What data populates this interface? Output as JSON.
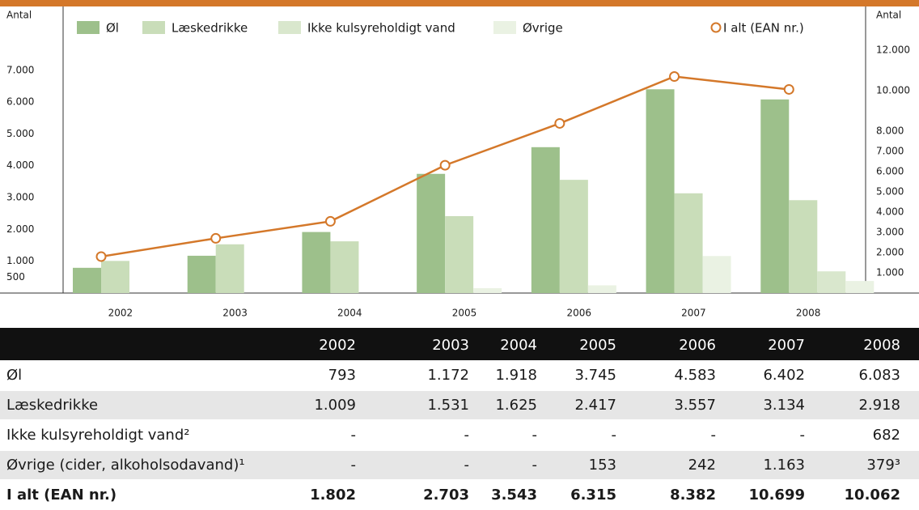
{
  "chart_data": {
    "type": "bar",
    "y_label": "Antal",
    "y2_label": "Antal",
    "categories": [
      "2002",
      "2003",
      "2004",
      "2005",
      "2006",
      "2007",
      "2008"
    ],
    "series": [
      {
        "name": "Øl",
        "color": "#9dc08b",
        "values": [
          793,
          1172,
          1918,
          3745,
          4583,
          6402,
          6083
        ]
      },
      {
        "name": "Læskedrikke",
        "color": "#c9ddb9",
        "values": [
          1009,
          1531,
          1625,
          2417,
          3557,
          3134,
          2918
        ]
      },
      {
        "name": "Ikke kulsyreholdigt vand",
        "color": "#d9e7cd",
        "values": [
          null,
          null,
          null,
          null,
          null,
          null,
          682
        ]
      },
      {
        "name": "Øvrige",
        "color": "#eaf2e3",
        "values": [
          null,
          null,
          null,
          153,
          242,
          1163,
          379
        ]
      },
      {
        "name": "I alt (EAN nr.)",
        "color": "#d4782a",
        "type": "line",
        "axis": "y2",
        "values": [
          1802,
          2703,
          3543,
          6315,
          8382,
          10699,
          10062
        ]
      }
    ],
    "ylim": [
      0,
      8800
    ],
    "yticks": [
      500,
      {
        "value": 1000,
        "label": "1.000"
      },
      {
        "value": 2000,
        "label": "2.000"
      },
      {
        "value": 3000,
        "label": "3.000"
      },
      {
        "value": 4000,
        "label": "4.000"
      },
      {
        "value": 5000,
        "label": "5.000"
      },
      {
        "value": 6000,
        "label": "6.000"
      },
      {
        "value": 7000,
        "label": "7.000"
      }
    ],
    "y2lim": [
      0,
      13840
    ],
    "y2ticks": [
      {
        "value": 1000,
        "label": "1.000"
      },
      {
        "value": 2000,
        "label": "2.000"
      },
      {
        "value": 3000,
        "label": "3.000"
      },
      {
        "value": 4000,
        "label": "4.000"
      },
      {
        "value": 5000,
        "label": "5.000"
      },
      {
        "value": 6000,
        "label": "6.000"
      },
      {
        "value": 7000,
        "label": "7.000"
      },
      {
        "value": 8000,
        "label": "8.000"
      },
      {
        "value": 10000,
        "label": "10.000"
      },
      {
        "value": 12000,
        "label": "12.000"
      }
    ],
    "grid": false,
    "legend": "top"
  },
  "table": {
    "header": [
      "2002",
      "2003",
      "2004",
      "2005",
      "2006",
      "2007",
      "2008"
    ],
    "rows": [
      {
        "label": "Øl",
        "cells": [
          "793",
          "1.172",
          "1.918",
          "3.745",
          "4.583",
          "6.402",
          "6.083"
        ]
      },
      {
        "label": "Læskedrikke",
        "cells": [
          "1.009",
          "1.531",
          "1.625",
          "2.417",
          "3.557",
          "3.134",
          "2.918"
        ]
      },
      {
        "label": "Ikke kulsyreholdigt vand²",
        "cells": [
          "-",
          "-",
          "-",
          "-",
          "-",
          "-",
          "682"
        ]
      },
      {
        "label": "Øvrige (cider, alkoholsodavand)¹",
        "cells": [
          "-",
          "-",
          "-",
          "153",
          "242",
          "1.163",
          "379³"
        ]
      },
      {
        "label": "I alt (EAN nr.)",
        "cells": [
          "1.802",
          "2.703",
          "3.543",
          "6.315",
          "8.382",
          "10.699",
          "10.062"
        ]
      }
    ]
  }
}
